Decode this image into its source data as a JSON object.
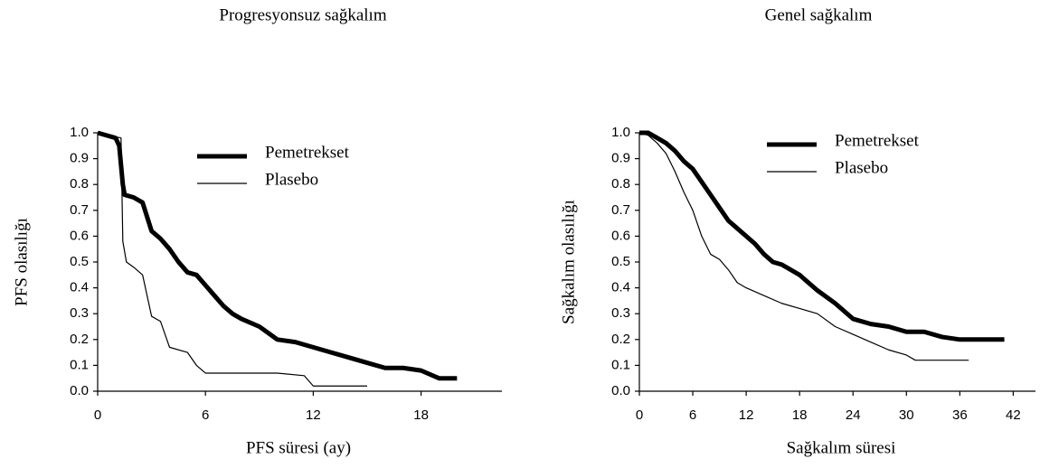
{
  "chart_data": [
    {
      "type": "line",
      "title": "Progresyonsuz sağkalım",
      "xlabel": "PFS süresi (ay)",
      "ylabel": "PFS olasılığı",
      "xlim": [
        0,
        22.5
      ],
      "xticks": [
        0,
        6,
        12,
        18
      ],
      "ylim": [
        0,
        1
      ],
      "yticks": [
        {
          "value": 0,
          "label": "0.0"
        },
        0.1,
        0.2,
        0.3,
        0.4,
        0.5,
        0.6,
        0.7,
        0.8,
        0.9,
        {
          "value": 1,
          "label": "1.0"
        }
      ],
      "series": [
        {
          "name": "Pemetrekset",
          "color": "#000000",
          "width": 5,
          "x": [
            0,
            0.5,
            1,
            1.2,
            1.4,
            1.5,
            2,
            2.5,
            3,
            3.5,
            4,
            4.5,
            5,
            5.5,
            6,
            6.5,
            7,
            7.5,
            8,
            9,
            10,
            11,
            12,
            13,
            14,
            15,
            16,
            17,
            18,
            19,
            20
          ],
          "values": [
            1,
            0.99,
            0.98,
            0.95,
            0.8,
            0.76,
            0.75,
            0.73,
            0.62,
            0.59,
            0.55,
            0.5,
            0.46,
            0.45,
            0.41,
            0.37,
            0.33,
            0.3,
            0.28,
            0.25,
            0.2,
            0.19,
            0.17,
            0.15,
            0.13,
            0.11,
            0.09,
            0.09,
            0.08,
            0.05,
            0.05
          ]
        },
        {
          "name": "Plasebo",
          "color": "#000000",
          "width": 1.2,
          "x": [
            0,
            1.3,
            1.4,
            1.6,
            2,
            2.5,
            3,
            3.5,
            4,
            5,
            5.5,
            6,
            8,
            10,
            11.5,
            12,
            13,
            15
          ],
          "values": [
            1,
            0.98,
            0.58,
            0.5,
            0.48,
            0.45,
            0.29,
            0.27,
            0.17,
            0.15,
            0.1,
            0.07,
            0.07,
            0.07,
            0.06,
            0.02,
            0.02,
            0.02
          ]
        }
      ]
    },
    {
      "type": "line",
      "title": "Genel sağkalım",
      "xlabel": "Sağkalım süresi",
      "ylabel": "Sağkalım olasılığı",
      "xlim": [
        0,
        44.5
      ],
      "xticks": [
        0,
        6,
        12,
        18,
        24,
        30,
        36,
        42
      ],
      "ylim": [
        0,
        1
      ],
      "yticks": [
        {
          "value": 0,
          "label": "0.0"
        },
        0.1,
        0.2,
        0.3,
        0.4,
        0.5,
        0.6,
        0.7,
        0.8,
        0.9,
        {
          "value": 1,
          "label": "1.0"
        }
      ],
      "series": [
        {
          "name": "Pemetrekset",
          "color": "#000000",
          "width": 5,
          "x": [
            0,
            1,
            2,
            3,
            4,
            5,
            6,
            7,
            8,
            9,
            10,
            11,
            12,
            13,
            14,
            15,
            16,
            18,
            20,
            22,
            24,
            26,
            28,
            30,
            32,
            34,
            36,
            38,
            41
          ],
          "values": [
            1,
            1,
            0.98,
            0.96,
            0.93,
            0.89,
            0.86,
            0.81,
            0.76,
            0.71,
            0.66,
            0.63,
            0.6,
            0.57,
            0.53,
            0.5,
            0.49,
            0.45,
            0.39,
            0.34,
            0.28,
            0.26,
            0.25,
            0.23,
            0.23,
            0.21,
            0.2,
            0.2,
            0.2
          ]
        },
        {
          "name": "Plasebo",
          "color": "#000000",
          "width": 1.2,
          "x": [
            0,
            1,
            2,
            3,
            4,
            5,
            6,
            7,
            8,
            9,
            10,
            11,
            12,
            14,
            16,
            18,
            20,
            22,
            24,
            26,
            28,
            30,
            31,
            34,
            37
          ],
          "values": [
            1,
            0.99,
            0.96,
            0.92,
            0.85,
            0.77,
            0.7,
            0.6,
            0.53,
            0.51,
            0.47,
            0.42,
            0.4,
            0.37,
            0.34,
            0.32,
            0.3,
            0.25,
            0.22,
            0.19,
            0.16,
            0.14,
            0.12,
            0.12,
            0.12
          ]
        }
      ]
    }
  ]
}
